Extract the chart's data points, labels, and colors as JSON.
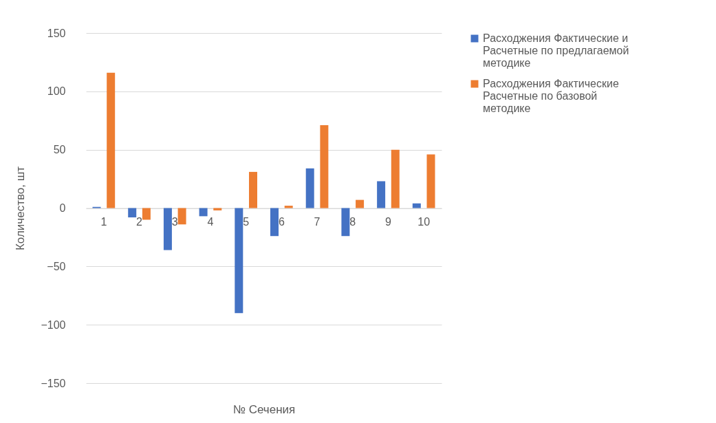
{
  "chart_data": {
    "type": "bar",
    "xlabel": "№ Сечения",
    "ylabel": "Количество, шт",
    "categories": [
      "1",
      "2",
      "3",
      "4",
      "5",
      "6",
      "7",
      "8",
      "9",
      "10"
    ],
    "series": [
      {
        "name": "Расходжения Фактические и Расчетные по предлагаемой методике",
        "color": "#4472c4",
        "values": [
          1,
          -8,
          -36,
          -7,
          -90,
          -24,
          34,
          -24,
          23,
          4
        ]
      },
      {
        "name": "Расходжения Фактические Расчетные по базовой методике",
        "color": "#ed7d31",
        "values": [
          116,
          -10,
          -14,
          -2,
          31,
          2,
          71,
          7,
          50,
          46
        ]
      }
    ],
    "ylim": [
      -150,
      150
    ],
    "yticks": [
      -150,
      -100,
      -50,
      0,
      50,
      100,
      150
    ],
    "grid": "y",
    "legend": "right"
  }
}
